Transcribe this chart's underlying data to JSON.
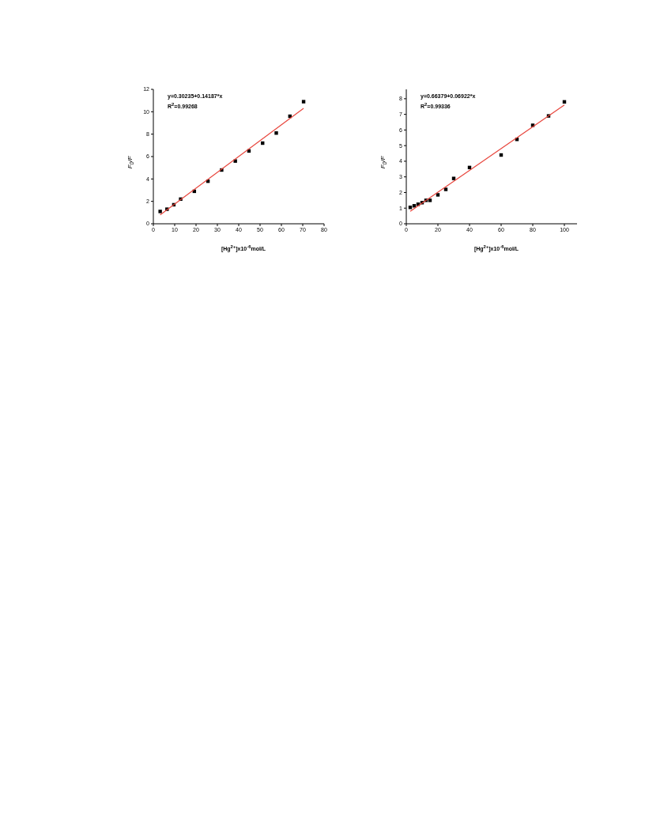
{
  "chart_data": [
    {
      "type": "scatter",
      "xlabel": "[Hg$^{2+}$]x10$^{-6}$mol/L",
      "ylabel": "F$_{0}$/F",
      "annotations": [
        "y=0.30235+0.14187*x",
        "R$^{2}$=0.99268"
      ],
      "xlim": [
        0,
        80
      ],
      "xticks": [
        0,
        10,
        20,
        30,
        40,
        50,
        60,
        70,
        80
      ],
      "ylim": [
        0,
        12
      ],
      "yticks": [
        0,
        2,
        4,
        6,
        8,
        10,
        12
      ],
      "marker": "square",
      "legend": false,
      "grid": false,
      "series": [
        {
          "color": "#000000",
          "x": [
            3.2,
            6.4,
            9.6,
            12.8,
            19.2,
            25.6,
            32,
            38.4,
            44.8,
            51.2,
            57.6,
            64,
            70.4
          ],
          "values": [
            1.1,
            1.3,
            1.7,
            2.2,
            2.9,
            3.8,
            4.8,
            5.6,
            6.5,
            7.2,
            8.1,
            9.6,
            10.9
          ]
        },
        {
          "type": "line",
          "marker": "none",
          "color": "#e8453c",
          "x": [
            3.2,
            70.4
          ],
          "values": [
            0.8,
            10.3
          ]
        }
      ]
    },
    {
      "type": "scatter",
      "xlabel": "[Hg$^{2+}$]x10$^{-6}$mol/L",
      "ylabel": "F$_{0}$/F",
      "annotations": [
        "y=0.66379+0.06922*x",
        "R$^{2}$=0.99336"
      ],
      "xlim": [
        0,
        108
      ],
      "xticks": [
        0,
        20,
        40,
        60,
        80,
        100
      ],
      "ylim": [
        0,
        8.6
      ],
      "yticks": [
        0,
        1,
        2,
        3,
        4,
        5,
        6,
        7,
        8
      ],
      "marker": "square",
      "legend": false,
      "grid": false,
      "series": [
        {
          "color": "#000000",
          "x": [
            2.5,
            5,
            7.5,
            10,
            12.5,
            15,
            20,
            25,
            30,
            40,
            60,
            70,
            80,
            90,
            100
          ],
          "values": [
            1.05,
            1.15,
            1.25,
            1.35,
            1.5,
            1.5,
            1.85,
            2.2,
            2.9,
            3.6,
            4.4,
            5.4,
            6.3,
            6.9,
            7.8
          ]
        },
        {
          "type": "line",
          "marker": "none",
          "color": "#e8453c",
          "x": [
            2.5,
            100
          ],
          "values": [
            0.8,
            7.6
          ]
        }
      ]
    }
  ]
}
